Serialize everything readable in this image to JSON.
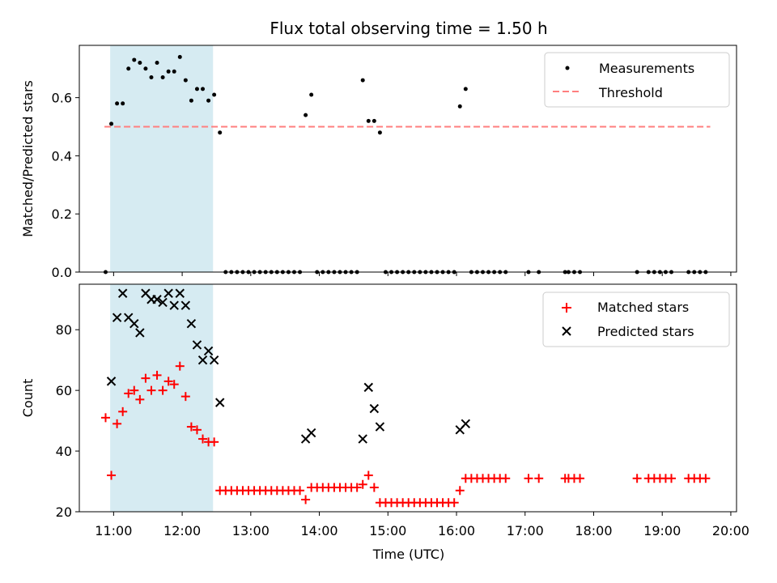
{
  "figure_title": "Flux total observing time = 1.50 h",
  "x_axis": {
    "label": "Time (UTC)",
    "ticks": [
      "11:00",
      "12:00",
      "13:00",
      "14:00",
      "15:00",
      "16:00",
      "17:00",
      "18:00",
      "19:00",
      "20:00"
    ]
  },
  "shaded_region": {
    "start": "10:57",
    "end": "12:27",
    "color": "#add8e6"
  },
  "colors": {
    "measurements": "#000000",
    "threshold": "#ff7f7f",
    "matched": "#ff0000",
    "predicted": "#000000"
  },
  "chart_data": [
    {
      "type": "scatter",
      "ylabel": "Matched/Predicted stars",
      "xlim": [
        "10:30",
        "20:05"
      ],
      "ylim": [
        0,
        0.78
      ],
      "yticks": [
        "0.0",
        "0.2",
        "0.4",
        "0.6"
      ],
      "legend": {
        "position": "top-right",
        "entries": [
          "Measurements",
          "Threshold"
        ]
      },
      "threshold": {
        "name": "Threshold",
        "value": 0.5,
        "x_range": [
          "10:52",
          "19:42"
        ]
      },
      "series": [
        {
          "name": "Measurements",
          "marker": "dot",
          "points": [
            [
              "10:53",
              0
            ],
            [
              "10:58",
              0.51
            ],
            [
              "11:03",
              0.58
            ],
            [
              "11:08",
              0.58
            ],
            [
              "11:13",
              0.7
            ],
            [
              "11:18",
              0.73
            ],
            [
              "11:23",
              0.72
            ],
            [
              "11:28",
              0.7
            ],
            [
              "11:33",
              0.67
            ],
            [
              "11:38",
              0.72
            ],
            [
              "11:43",
              0.67
            ],
            [
              "11:48",
              0.69
            ],
            [
              "11:53",
              0.69
            ],
            [
              "11:58",
              0.74
            ],
            [
              "12:03",
              0.66
            ],
            [
              "12:08",
              0.59
            ],
            [
              "12:13",
              0.63
            ],
            [
              "12:18",
              0.63
            ],
            [
              "12:23",
              0.59
            ],
            [
              "12:28",
              0.61
            ],
            [
              "12:33",
              0.48
            ],
            [
              "12:38",
              0
            ],
            [
              "12:43",
              0
            ],
            [
              "12:48",
              0
            ],
            [
              "12:53",
              0
            ],
            [
              "12:58",
              0
            ],
            [
              "13:03",
              0
            ],
            [
              "13:08",
              0
            ],
            [
              "13:13",
              0
            ],
            [
              "13:18",
              0
            ],
            [
              "13:23",
              0
            ],
            [
              "13:28",
              0
            ],
            [
              "13:33",
              0
            ],
            [
              "13:38",
              0
            ],
            [
              "13:43",
              0
            ],
            [
              "13:48",
              0.54
            ],
            [
              "13:53",
              0.61
            ],
            [
              "13:58",
              0
            ],
            [
              "14:03",
              0
            ],
            [
              "14:08",
              0
            ],
            [
              "14:13",
              0
            ],
            [
              "14:18",
              0
            ],
            [
              "14:23",
              0
            ],
            [
              "14:28",
              0
            ],
            [
              "14:33",
              0
            ],
            [
              "14:38",
              0.66
            ],
            [
              "14:43",
              0.52
            ],
            [
              "14:48",
              0.52
            ],
            [
              "14:53",
              0.48
            ],
            [
              "14:58",
              0
            ],
            [
              "15:03",
              0
            ],
            [
              "15:08",
              0
            ],
            [
              "15:13",
              0
            ],
            [
              "15:18",
              0
            ],
            [
              "15:23",
              0
            ],
            [
              "15:28",
              0
            ],
            [
              "15:33",
              0
            ],
            [
              "15:38",
              0
            ],
            [
              "15:43",
              0
            ],
            [
              "15:48",
              0
            ],
            [
              "15:53",
              0
            ],
            [
              "15:58",
              0
            ],
            [
              "16:03",
              0.57
            ],
            [
              "16:08",
              0.63
            ],
            [
              "16:13",
              0
            ],
            [
              "16:18",
              0
            ],
            [
              "16:23",
              0
            ],
            [
              "16:28",
              0
            ],
            [
              "16:33",
              0
            ],
            [
              "16:38",
              0
            ],
            [
              "16:43",
              0
            ],
            [
              "17:03",
              0
            ],
            [
              "17:12",
              0
            ],
            [
              "17:35",
              0
            ],
            [
              "17:38",
              0
            ],
            [
              "17:43",
              0
            ],
            [
              "17:48",
              0
            ],
            [
              "18:38",
              0
            ],
            [
              "18:48",
              0
            ],
            [
              "18:53",
              0
            ],
            [
              "18:58",
              0
            ],
            [
              "19:03",
              0
            ],
            [
              "19:08",
              0
            ],
            [
              "19:23",
              0
            ],
            [
              "19:28",
              0
            ],
            [
              "19:33",
              0
            ],
            [
              "19:38",
              0
            ]
          ]
        }
      ]
    },
    {
      "type": "scatter",
      "ylabel": "Count",
      "xlabel": "Time (UTC)",
      "xlim": [
        "10:30",
        "20:05"
      ],
      "ylim": [
        20,
        95
      ],
      "yticks": [
        "20",
        "40",
        "60",
        "80"
      ],
      "legend": {
        "position": "top-right",
        "entries": [
          "Matched stars",
          "Predicted stars"
        ]
      },
      "series": [
        {
          "name": "Matched stars",
          "marker": "plus",
          "points": [
            [
              "10:53",
              51
            ],
            [
              "10:58",
              32
            ],
            [
              "11:03",
              49
            ],
            [
              "11:08",
              53
            ],
            [
              "11:13",
              59
            ],
            [
              "11:18",
              60
            ],
            [
              "11:23",
              57
            ],
            [
              "11:28",
              64
            ],
            [
              "11:33",
              60
            ],
            [
              "11:38",
              65
            ],
            [
              "11:43",
              60
            ],
            [
              "11:48",
              63
            ],
            [
              "11:53",
              62
            ],
            [
              "11:58",
              68
            ],
            [
              "12:03",
              58
            ],
            [
              "12:08",
              48
            ],
            [
              "12:13",
              47
            ],
            [
              "12:18",
              44
            ],
            [
              "12:23",
              43
            ],
            [
              "12:28",
              43
            ],
            [
              "12:33",
              27
            ],
            [
              "12:38",
              27
            ],
            [
              "12:43",
              27
            ],
            [
              "12:48",
              27
            ],
            [
              "12:53",
              27
            ],
            [
              "12:58",
              27
            ],
            [
              "13:03",
              27
            ],
            [
              "13:08",
              27
            ],
            [
              "13:13",
              27
            ],
            [
              "13:18",
              27
            ],
            [
              "13:23",
              27
            ],
            [
              "13:28",
              27
            ],
            [
              "13:33",
              27
            ],
            [
              "13:38",
              27
            ],
            [
              "13:43",
              27
            ],
            [
              "13:48",
              24
            ],
            [
              "13:53",
              28
            ],
            [
              "13:58",
              28
            ],
            [
              "14:03",
              28
            ],
            [
              "14:08",
              28
            ],
            [
              "14:13",
              28
            ],
            [
              "14:18",
              28
            ],
            [
              "14:23",
              28
            ],
            [
              "14:28",
              28
            ],
            [
              "14:33",
              28
            ],
            [
              "14:38",
              29
            ],
            [
              "14:43",
              32
            ],
            [
              "14:48",
              28
            ],
            [
              "14:53",
              23
            ],
            [
              "14:58",
              23
            ],
            [
              "15:03",
              23
            ],
            [
              "15:08",
              23
            ],
            [
              "15:13",
              23
            ],
            [
              "15:18",
              23
            ],
            [
              "15:23",
              23
            ],
            [
              "15:28",
              23
            ],
            [
              "15:33",
              23
            ],
            [
              "15:38",
              23
            ],
            [
              "15:43",
              23
            ],
            [
              "15:48",
              23
            ],
            [
              "15:53",
              23
            ],
            [
              "15:58",
              23
            ],
            [
              "16:03",
              27
            ],
            [
              "16:08",
              31
            ],
            [
              "16:13",
              31
            ],
            [
              "16:18",
              31
            ],
            [
              "16:23",
              31
            ],
            [
              "16:28",
              31
            ],
            [
              "16:33",
              31
            ],
            [
              "16:38",
              31
            ],
            [
              "16:43",
              31
            ],
            [
              "17:03",
              31
            ],
            [
              "17:12",
              31
            ],
            [
              "17:35",
              31
            ],
            [
              "17:38",
              31
            ],
            [
              "17:43",
              31
            ],
            [
              "17:48",
              31
            ],
            [
              "18:38",
              31
            ],
            [
              "18:48",
              31
            ],
            [
              "18:53",
              31
            ],
            [
              "18:58",
              31
            ],
            [
              "19:03",
              31
            ],
            [
              "19:08",
              31
            ],
            [
              "19:23",
              31
            ],
            [
              "19:28",
              31
            ],
            [
              "19:33",
              31
            ],
            [
              "19:38",
              31
            ]
          ]
        },
        {
          "name": "Predicted stars",
          "marker": "x",
          "points": [
            [
              "10:58",
              63
            ],
            [
              "11:03",
              84
            ],
            [
              "11:08",
              92
            ],
            [
              "11:13",
              84
            ],
            [
              "11:18",
              82
            ],
            [
              "11:23",
              79
            ],
            [
              "11:28",
              92
            ],
            [
              "11:33",
              90
            ],
            [
              "11:38",
              90
            ],
            [
              "11:43",
              89
            ],
            [
              "11:48",
              92
            ],
            [
              "11:53",
              88
            ],
            [
              "11:58",
              92
            ],
            [
              "12:03",
              88
            ],
            [
              "12:08",
              82
            ],
            [
              "12:13",
              75
            ],
            [
              "12:18",
              70
            ],
            [
              "12:23",
              73
            ],
            [
              "12:28",
              70
            ],
            [
              "12:33",
              56
            ],
            [
              "13:48",
              44
            ],
            [
              "13:53",
              46
            ],
            [
              "14:38",
              44
            ],
            [
              "14:43",
              61
            ],
            [
              "14:48",
              54
            ],
            [
              "14:53",
              48
            ],
            [
              "16:03",
              47
            ],
            [
              "16:08",
              49
            ]
          ]
        }
      ]
    }
  ]
}
